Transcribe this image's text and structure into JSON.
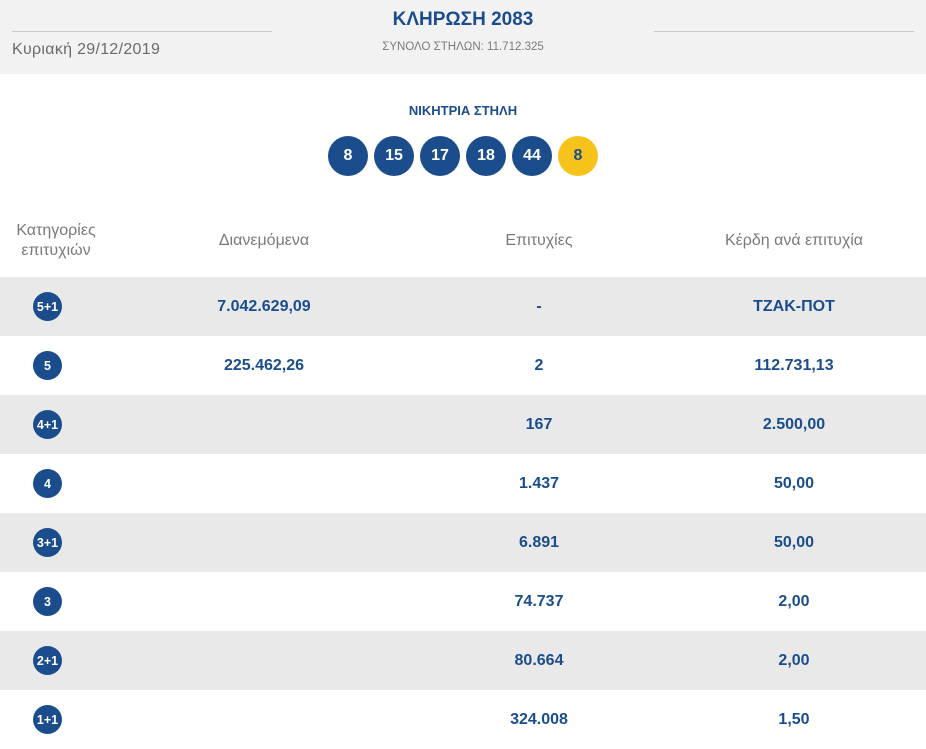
{
  "header": {
    "date": "Κυριακή 29/12/2019",
    "draw_title": "ΚΛΗΡΩΣΗ 2083",
    "columns_count": "ΣΥΝΟΛΟ ΣΤΗΛΩΝ: 11.712.325"
  },
  "winning": {
    "label": "ΝΙΚΗΤΡΙΑ ΣΤΗΛΗ",
    "numbers": [
      "8",
      "15",
      "17",
      "18",
      "44"
    ],
    "joker": "8",
    "colors": {
      "ball": "#1b4d8c",
      "joker": "#f6c21c"
    }
  },
  "table": {
    "headers": {
      "category": [
        "Κατηγορίες",
        "επιτυχιών"
      ],
      "distributed": "Διανεμόμενα",
      "winners": "Επιτυχίες",
      "prize": "Κέρδη ανά επιτυχία"
    },
    "rows": [
      {
        "category": "5+1",
        "distributed": "7.042.629,09",
        "winners": "-",
        "prize": "ΤΖΑΚ-ΠΟΤ"
      },
      {
        "category": "5",
        "distributed": "225.462,26",
        "winners": "2",
        "prize": "112.731,13"
      },
      {
        "category": "4+1",
        "distributed": "",
        "winners": "167",
        "prize": "2.500,00"
      },
      {
        "category": "4",
        "distributed": "",
        "winners": "1.437",
        "prize": "50,00"
      },
      {
        "category": "3+1",
        "distributed": "",
        "winners": "6.891",
        "prize": "50,00"
      },
      {
        "category": "3",
        "distributed": "",
        "winners": "74.737",
        "prize": "2,00"
      },
      {
        "category": "2+1",
        "distributed": "",
        "winners": "80.664",
        "prize": "2,00"
      },
      {
        "category": "1+1",
        "distributed": "",
        "winners": "324.008",
        "prize": "1,50"
      }
    ]
  }
}
